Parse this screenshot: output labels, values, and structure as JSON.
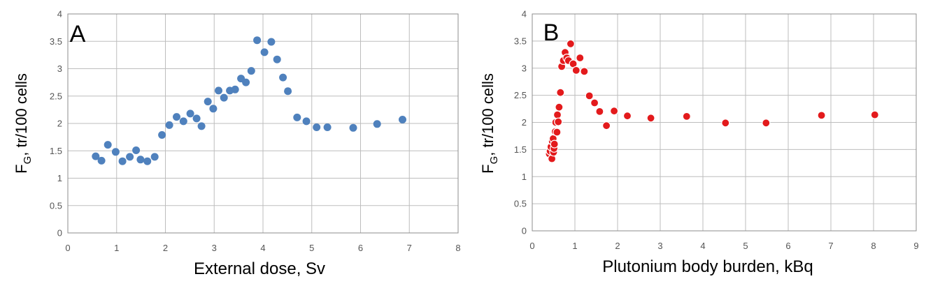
{
  "chart_data": [
    {
      "type": "scatter",
      "panel_label": "A",
      "xlabel": "External dose, Sv",
      "ylabel_main": "F",
      "ylabel_sub": "G",
      "ylabel_rest": ", tr/100 cells",
      "xlim": [
        0,
        8
      ],
      "ylim": [
        0,
        4
      ],
      "xticks": [
        "0",
        "1",
        "2",
        "3",
        "4",
        "5",
        "6",
        "7",
        "8"
      ],
      "yticks": [
        "0",
        "0.5",
        "1",
        "1.5",
        "2",
        "2.5",
        "3",
        "3.5",
        "4"
      ],
      "grid": true,
      "marker_color": "#4f81bd",
      "marker_edge": "#4f81bd",
      "points": [
        [
          0.57,
          1.4
        ],
        [
          0.69,
          1.32
        ],
        [
          0.82,
          1.61
        ],
        [
          0.98,
          1.48
        ],
        [
          1.12,
          1.31
        ],
        [
          1.27,
          1.39
        ],
        [
          1.4,
          1.51
        ],
        [
          1.49,
          1.34
        ],
        [
          1.63,
          1.31
        ],
        [
          1.78,
          1.39
        ],
        [
          1.93,
          1.79
        ],
        [
          2.08,
          1.97
        ],
        [
          2.23,
          2.12
        ],
        [
          2.37,
          2.04
        ],
        [
          2.51,
          2.18
        ],
        [
          2.64,
          2.09
        ],
        [
          2.74,
          1.95
        ],
        [
          2.87,
          2.4
        ],
        [
          2.98,
          2.27
        ],
        [
          3.09,
          2.6
        ],
        [
          3.2,
          2.47
        ],
        [
          3.32,
          2.6
        ],
        [
          3.43,
          2.62
        ],
        [
          3.55,
          2.82
        ],
        [
          3.65,
          2.75
        ],
        [
          3.76,
          2.96
        ],
        [
          3.88,
          3.52
        ],
        [
          4.03,
          3.3
        ],
        [
          4.17,
          3.49
        ],
        [
          4.29,
          3.17
        ],
        [
          4.41,
          2.84
        ],
        [
          4.51,
          2.59
        ],
        [
          4.7,
          2.11
        ],
        [
          4.89,
          2.04
        ],
        [
          5.1,
          1.93
        ],
        [
          5.32,
          1.93
        ],
        [
          5.85,
          1.92
        ],
        [
          6.34,
          1.99
        ],
        [
          6.86,
          2.07
        ]
      ]
    },
    {
      "type": "scatter",
      "panel_label": "B",
      "xlabel": "Plutonium body burden, kBq",
      "ylabel_main": "F",
      "ylabel_sub": "G",
      "ylabel_rest": ", tr/100 cells",
      "xlim": [
        0,
        9
      ],
      "ylim": [
        0,
        4
      ],
      "xticks": [
        "0",
        "1",
        "2",
        "3",
        "4",
        "5",
        "6",
        "7",
        "8",
        "9"
      ],
      "yticks": [
        "0",
        "0.5",
        "1",
        "1.5",
        "2",
        "2.5",
        "3",
        "3.5",
        "4"
      ],
      "grid": true,
      "marker_color": "#e31a1c",
      "marker_edge": "#ffffff",
      "points": [
        [
          0.4,
          1.42
        ],
        [
          0.42,
          1.47
        ],
        [
          0.44,
          1.55
        ],
        [
          0.46,
          1.33
        ],
        [
          0.47,
          1.65
        ],
        [
          0.49,
          1.7
        ],
        [
          0.5,
          1.45
        ],
        [
          0.51,
          1.52
        ],
        [
          0.52,
          1.6
        ],
        [
          0.54,
          1.83
        ],
        [
          0.55,
          2.0
        ],
        [
          0.58,
          1.82
        ],
        [
          0.59,
          2.14
        ],
        [
          0.61,
          2.01
        ],
        [
          0.63,
          2.28
        ],
        [
          0.66,
          2.55
        ],
        [
          0.69,
          3.03
        ],
        [
          0.73,
          3.14
        ],
        [
          0.77,
          3.29
        ],
        [
          0.81,
          3.19
        ],
        [
          0.85,
          3.14
        ],
        [
          0.9,
          3.45
        ],
        [
          0.96,
          3.08
        ],
        [
          1.03,
          2.96
        ],
        [
          1.12,
          3.19
        ],
        [
          1.22,
          2.94
        ],
        [
          1.34,
          2.49
        ],
        [
          1.46,
          2.36
        ],
        [
          1.58,
          2.2
        ],
        [
          1.74,
          1.94
        ],
        [
          1.92,
          2.21
        ],
        [
          2.23,
          2.12
        ],
        [
          2.78,
          2.08
        ],
        [
          3.62,
          2.11
        ],
        [
          4.53,
          1.99
        ],
        [
          5.48,
          1.99
        ],
        [
          6.78,
          2.13
        ],
        [
          8.03,
          2.14
        ]
      ]
    }
  ]
}
